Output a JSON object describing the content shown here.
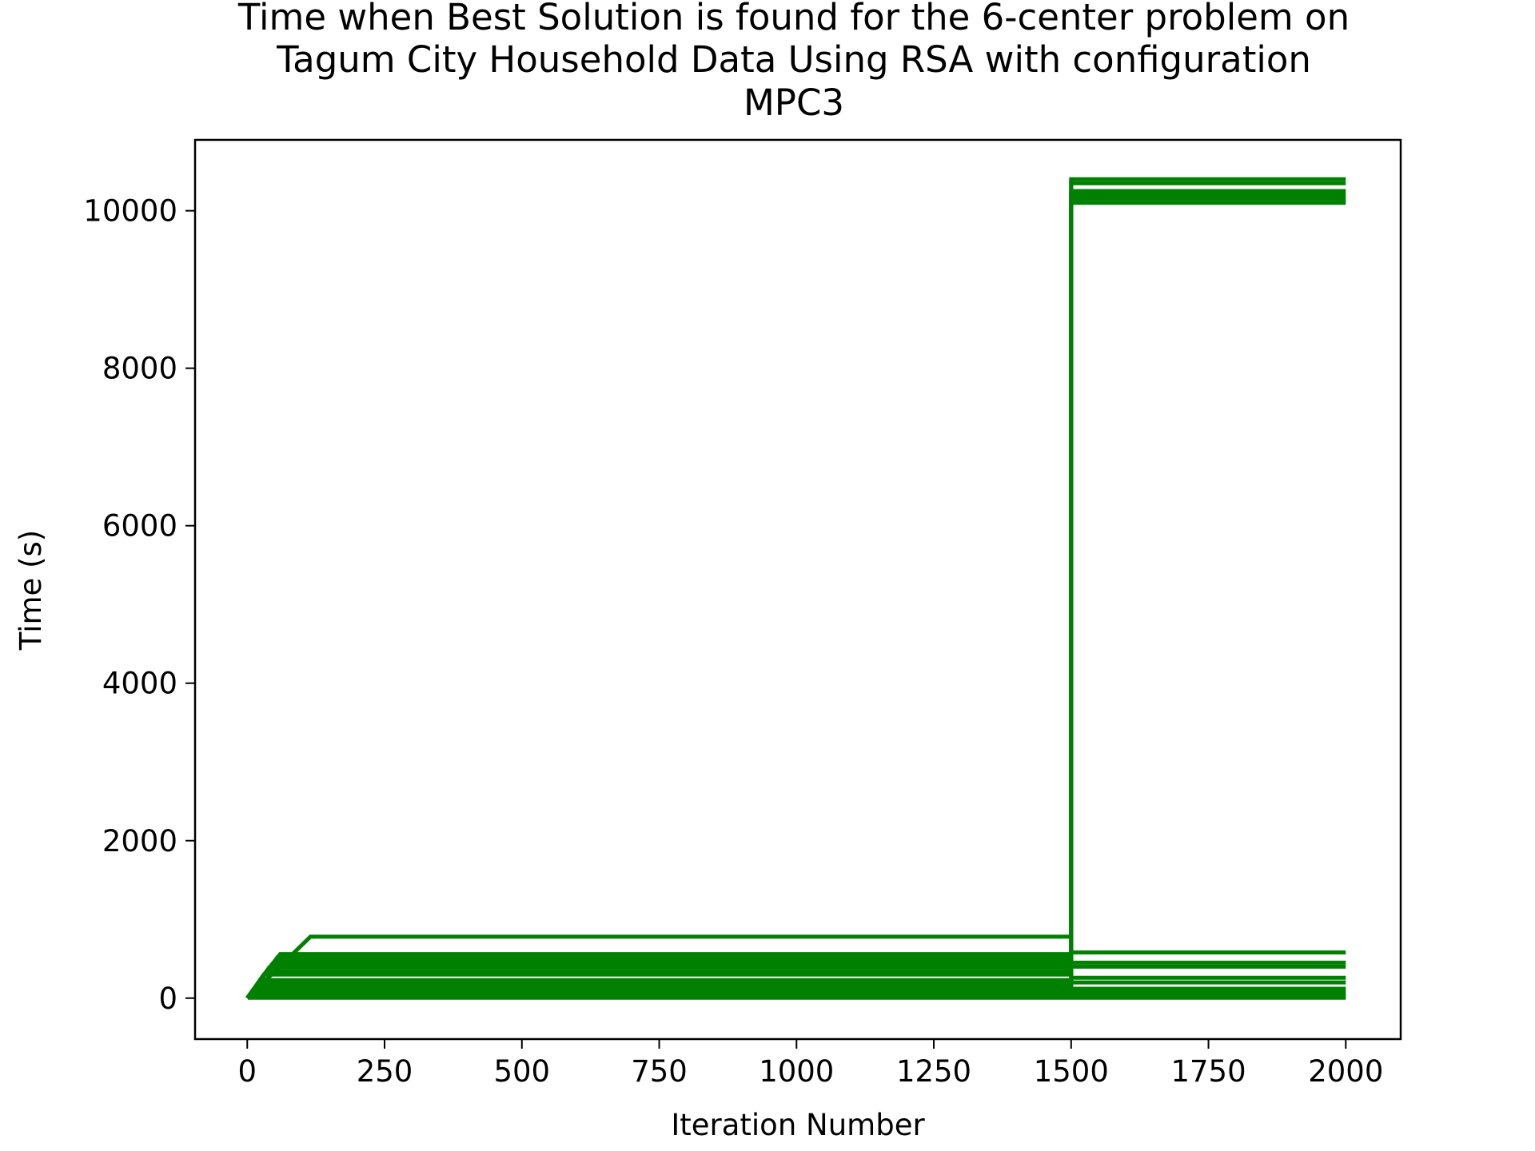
{
  "chart_data": {
    "type": "line",
    "title_lines": [
      "Time when Best Solution is found for the 6-center problem on",
      "Tagum City Household Data Using RSA with configuration",
      "MPC3"
    ],
    "xlabel": "Iteration Number",
    "ylabel": "Time (s)",
    "xlim": [
      -95,
      2100
    ],
    "ylim": [
      -520,
      10900
    ],
    "xticks": [
      0,
      250,
      500,
      750,
      1000,
      1250,
      1500,
      1750,
      2000
    ],
    "xtick_labels": [
      "0",
      "250",
      "500",
      "750",
      "1000",
      "1250",
      "1500",
      "1750",
      "2000"
    ],
    "yticks": [
      0,
      2000,
      4000,
      6000,
      8000,
      10000
    ],
    "ytick_labels": [
      "0",
      "2000",
      "4000",
      "6000",
      "8000",
      "10000"
    ],
    "grid": false,
    "legend": "none",
    "line_color": "#008000",
    "series": [
      {
        "x": [
          0,
          115,
          1500
        ],
        "y": [
          0,
          780,
          780
        ]
      },
      {
        "x": [
          0,
          60,
          1500,
          1500,
          2000
        ],
        "y": [
          0,
          560,
          560,
          10400,
          10400
        ]
      },
      {
        "x": [
          0,
          55,
          1500,
          1500,
          2000
        ],
        "y": [
          0,
          520,
          520,
          10350,
          10350
        ]
      },
      {
        "x": [
          0,
          50,
          1500,
          1500,
          2000
        ],
        "y": [
          0,
          470,
          470,
          10250,
          10250
        ]
      },
      {
        "x": [
          0,
          45,
          1500,
          1500,
          2000
        ],
        "y": [
          0,
          430,
          430,
          10200,
          10200
        ]
      },
      {
        "x": [
          0,
          40,
          1500,
          1500,
          2000
        ],
        "y": [
          0,
          390,
          390,
          10150,
          10150
        ]
      },
      {
        "x": [
          0,
          35,
          1500,
          1500,
          2000
        ],
        "y": [
          0,
          340,
          340,
          10100,
          10100
        ]
      },
      {
        "x": [
          0,
          30,
          1500,
          1500,
          2000
        ],
        "y": [
          0,
          300,
          300,
          580,
          580
        ]
      },
      {
        "x": [
          0,
          25,
          1500,
          1500,
          2000
        ],
        "y": [
          0,
          230,
          230,
          450,
          450
        ]
      },
      {
        "x": [
          0,
          20,
          1500,
          1500,
          2000
        ],
        "y": [
          0,
          180,
          180,
          400,
          400
        ]
      },
      {
        "x": [
          0,
          15,
          1500,
          1500,
          2000
        ],
        "y": [
          0,
          140,
          140,
          260,
          260
        ]
      },
      {
        "x": [
          0,
          10,
          1500,
          1500,
          2000
        ],
        "y": [
          0,
          100,
          100,
          200,
          200
        ]
      },
      {
        "x": [
          0,
          8,
          1500,
          1500,
          2000
        ],
        "y": [
          0,
          80,
          80,
          120,
          120
        ]
      },
      {
        "x": [
          0,
          6,
          1500,
          1500,
          2000
        ],
        "y": [
          0,
          60,
          60,
          90,
          90
        ]
      },
      {
        "x": [
          0,
          4,
          1500,
          1500,
          2000
        ],
        "y": [
          0,
          40,
          40,
          60,
          60
        ]
      },
      {
        "x": [
          0,
          2,
          1500,
          1500,
          2000
        ],
        "y": [
          0,
          20,
          20,
          40,
          40
        ]
      },
      {
        "x": [
          0,
          1,
          1500,
          1500,
          2000
        ],
        "y": [
          0,
          10,
          10,
          20,
          20
        ]
      },
      {
        "x": [
          0,
          1,
          2000
        ],
        "y": [
          0,
          5,
          5
        ]
      }
    ]
  }
}
